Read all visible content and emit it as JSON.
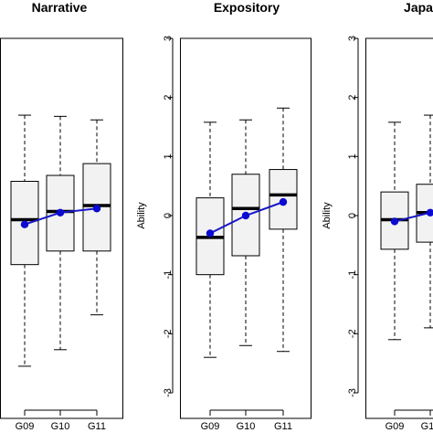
{
  "chart_data": [
    {
      "type": "box",
      "title": "Narrative",
      "xlabel": "",
      "ylabel": "",
      "ylim": [
        -3,
        3
      ],
      "categories": [
        "G09",
        "G10",
        "G11"
      ],
      "boxes": [
        {
          "min": -2.55,
          "q1": -0.83,
          "median": -0.07,
          "q3": 0.58,
          "max": 1.7
        },
        {
          "min": -2.27,
          "q1": -0.6,
          "median": 0.07,
          "q3": 0.68,
          "max": 1.68
        },
        {
          "min": -1.68,
          "q1": -0.6,
          "median": 0.17,
          "q3": 0.88,
          "max": 1.62
        }
      ],
      "means": [
        -0.15,
        0.05,
        0.12
      ]
    },
    {
      "type": "box",
      "title": "Expository",
      "xlabel": "",
      "ylabel": "Ability",
      "ylim": [
        -3,
        3
      ],
      "yticks": [
        "-3",
        "-2",
        "-1",
        "0",
        "1",
        "2",
        "3"
      ],
      "categories": [
        "G09",
        "G10",
        "G11"
      ],
      "boxes": [
        {
          "min": -2.4,
          "q1": -1.0,
          "median": -0.37,
          "q3": 0.3,
          "max": 1.58
        },
        {
          "min": -2.2,
          "q1": -0.68,
          "median": 0.12,
          "q3": 0.7,
          "max": 1.62
        },
        {
          "min": -2.3,
          "q1": -0.23,
          "median": 0.35,
          "q3": 0.78,
          "max": 1.82
        }
      ],
      "means": [
        -0.3,
        0.0,
        0.23
      ]
    },
    {
      "type": "box",
      "title": "Japa",
      "xlabel": "",
      "ylabel": "Ability",
      "ylim": [
        -3,
        3
      ],
      "yticks": [
        "-3",
        "-2",
        "-1",
        "0",
        "1",
        "2",
        "3"
      ],
      "categories": [
        "G09",
        "G10"
      ],
      "boxes": [
        {
          "min": -2.1,
          "q1": -0.57,
          "median": -0.07,
          "q3": 0.4,
          "max": 1.58
        },
        {
          "min": -1.9,
          "q1": -0.45,
          "median": 0.05,
          "q3": 0.53,
          "max": 1.7
        }
      ],
      "means": [
        -0.1,
        0.05
      ]
    }
  ],
  "colors": {
    "box_fill": "#f2f2f2",
    "mean_line": "#1818c8",
    "mean_point": "#0a0ad2",
    "ink": "#000000"
  }
}
